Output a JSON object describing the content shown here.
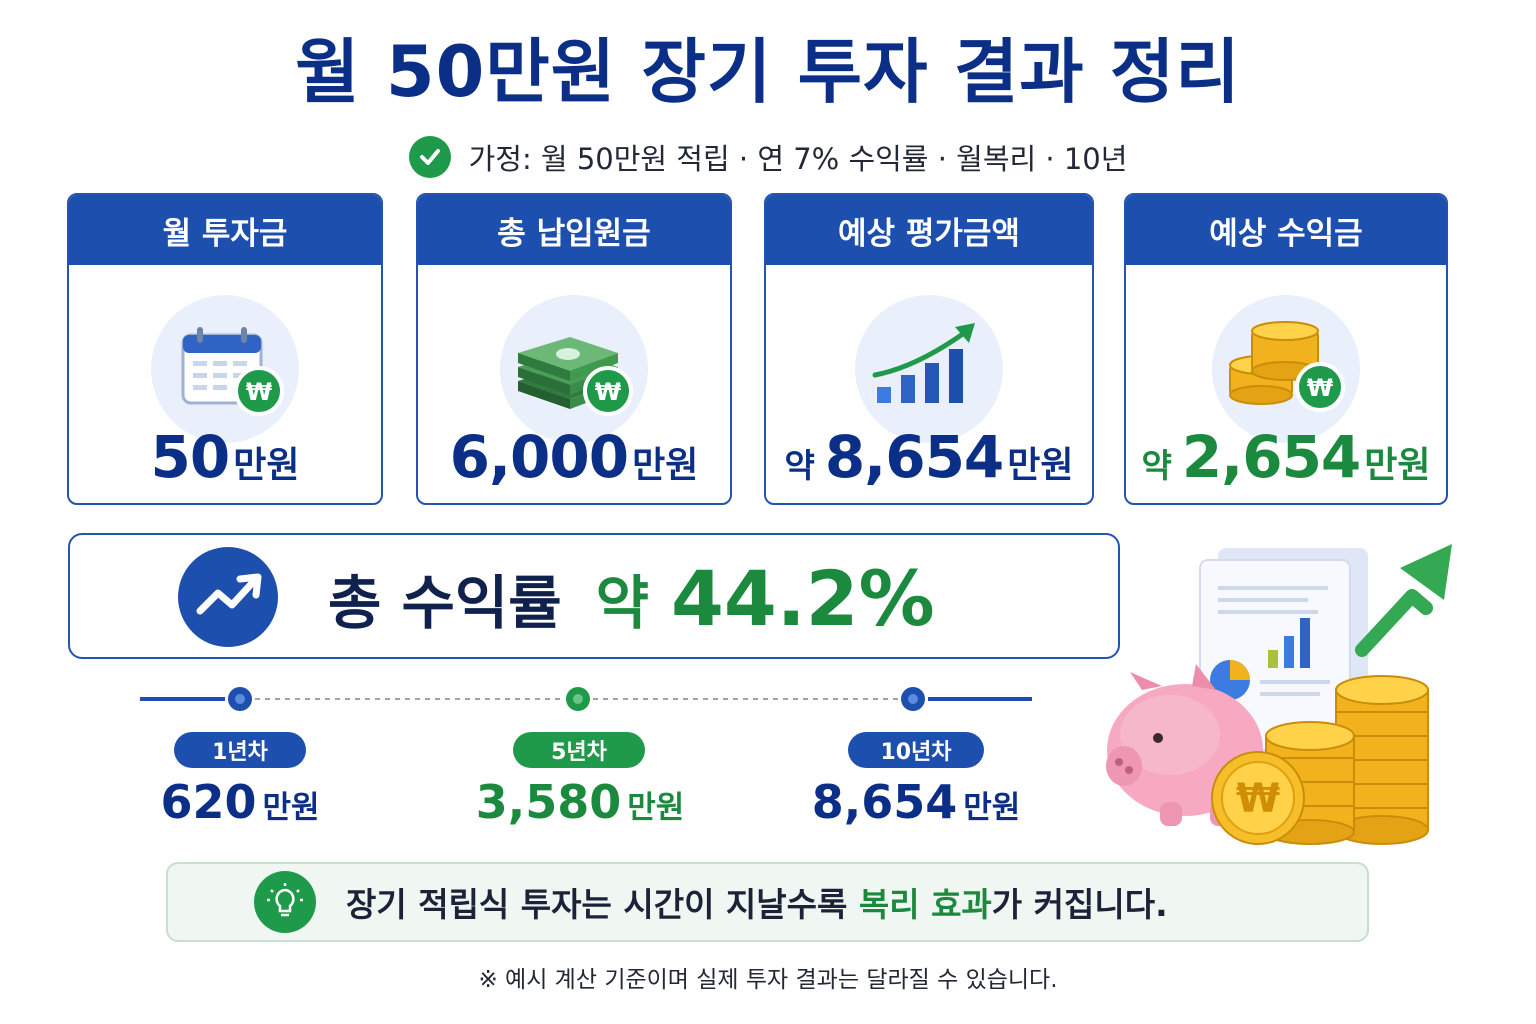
{
  "title": "월 50만원 장기 투자 결과 정리",
  "assumption": "가정: 월 50만원 적립 · 연 7% 수익률 · 월복리 · 10년",
  "cards": [
    {
      "header": "월 투자금",
      "prefix": "",
      "value": "50",
      "unit": "만원",
      "icon": "calendar-won-icon"
    },
    {
      "header": "총 납입원금",
      "prefix": "",
      "value": "6,000",
      "unit": "만원",
      "icon": "cash-stack-won-icon"
    },
    {
      "header": "예상 평가금액",
      "prefix": "약",
      "value": "8,654",
      "unit": "만원",
      "icon": "growth-chart-icon"
    },
    {
      "header": "예상 수익금",
      "prefix": "약",
      "value": "2,654",
      "unit": "만원",
      "icon": "coin-stack-won-icon"
    }
  ],
  "total": {
    "label": "총 수익률",
    "prefix": "약",
    "value": "44.2%"
  },
  "timeline": [
    {
      "label": "1년차",
      "value": "620",
      "unit": "만원"
    },
    {
      "label": "5년차",
      "value": "3,580",
      "unit": "만원"
    },
    {
      "label": "10년차",
      "value": "8,654",
      "unit": "만원"
    }
  ],
  "tip": {
    "before": "장기 적립식 투자는 시간이 지날수록 ",
    "highlight": "복리 효과",
    "after": "가 커집니다."
  },
  "note": "※ 예시 계산 기준이며 실제 투자 결과는 달라질 수 있습니다.",
  "colors": {
    "primary": "#1d4fae",
    "navy": "#0b2f87",
    "green": "#1b8a3e"
  }
}
